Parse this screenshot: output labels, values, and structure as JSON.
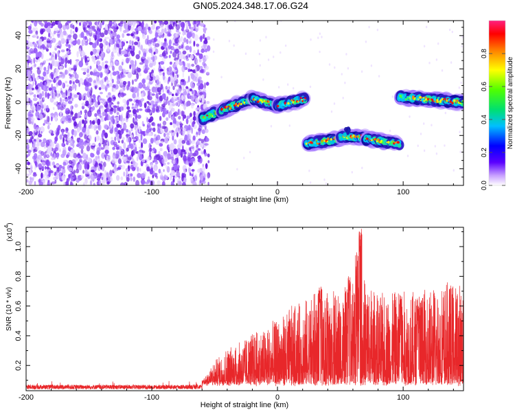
{
  "title": "GN05.2024.348.17.06.G24",
  "colors": {
    "noise": "#7a2ee6",
    "signal_low": "#1a1aa0",
    "snr_line": "#e8272a"
  },
  "chart_data": [
    {
      "type": "heatmap",
      "xlabel": "Height of straight line (km)",
      "ylabel": "Frequency (Hz)",
      "xlim": [
        -200,
        148
      ],
      "ylim": [
        -50,
        49
      ],
      "xticks": [
        -200,
        -100,
        0,
        100
      ],
      "yticks": [
        -40,
        -20,
        0,
        20,
        40
      ],
      "noise_region_x": [
        -200,
        -58
      ],
      "signal_segments": [
        {
          "x_start": -60,
          "x_end": -45,
          "freq_start": -10,
          "freq_end": -5
        },
        {
          "x_start": -45,
          "x_end": -20,
          "freq_start": -5,
          "freq_end": 2
        },
        {
          "x_start": -20,
          "x_end": 0,
          "freq_start": 2,
          "freq_end": -2
        },
        {
          "x_start": 0,
          "x_end": 22,
          "freq_start": -2,
          "freq_end": 2
        },
        {
          "x_start": 23,
          "x_end": 50,
          "freq_start": -25,
          "freq_end": -22
        },
        {
          "x_start": 50,
          "x_end": 70,
          "freq_start": -21,
          "freq_end": -21
        },
        {
          "x_start": 70,
          "x_end": 97,
          "freq_start": -22,
          "freq_end": -25
        },
        {
          "x_start": 97,
          "x_end": 148,
          "freq_start": 3,
          "freq_end": 0
        }
      ],
      "colorbar": {
        "label": "Normalized spectral amplitude",
        "range": [
          0,
          1
        ],
        "ticks": [
          "0.0",
          "0.2",
          "0.4",
          "0.6",
          "0.8"
        ]
      }
    },
    {
      "type": "line",
      "xlabel": "Height of straight line (km)",
      "ylabel": "SNR (10 * v/v)",
      "scale_note": "(x10",
      "scale_exp": "4",
      "xlim": [
        -200,
        148
      ],
      "ylim": [
        0.03,
        1.13
      ],
      "xticks": [
        -200,
        -100,
        0,
        100
      ],
      "yticks": [
        "0.2",
        "0.4",
        "0.6",
        "0.8",
        "1.0"
      ],
      "envelope": [
        {
          "x": -200,
          "y": 0.05
        },
        {
          "x": -150,
          "y": 0.05
        },
        {
          "x": -100,
          "y": 0.05
        },
        {
          "x": -60,
          "y": 0.06
        },
        {
          "x": -50,
          "y": 0.15
        },
        {
          "x": -40,
          "y": 0.22
        },
        {
          "x": -30,
          "y": 0.25
        },
        {
          "x": -20,
          "y": 0.3
        },
        {
          "x": -10,
          "y": 0.32
        },
        {
          "x": 0,
          "y": 0.36
        },
        {
          "x": 10,
          "y": 0.42
        },
        {
          "x": 20,
          "y": 0.45
        },
        {
          "x": 30,
          "y": 0.5
        },
        {
          "x": 40,
          "y": 0.52
        },
        {
          "x": 50,
          "y": 0.5
        },
        {
          "x": 60,
          "y": 0.55
        },
        {
          "x": 70,
          "y": 0.58
        },
        {
          "x": 80,
          "y": 0.48
        },
        {
          "x": 90,
          "y": 0.5
        },
        {
          "x": 100,
          "y": 0.5
        },
        {
          "x": 110,
          "y": 0.5
        },
        {
          "x": 120,
          "y": 0.52
        },
        {
          "x": 130,
          "y": 0.55
        },
        {
          "x": 148,
          "y": 0.55
        }
      ],
      "peaks": [
        {
          "x": 34,
          "y": 0.74
        },
        {
          "x": 57,
          "y": 0.8
        },
        {
          "x": 63,
          "y": 0.97
        },
        {
          "x": 66,
          "y": 1.13
        },
        {
          "x": 98,
          "y": 0.68
        },
        {
          "x": 112,
          "y": 0.66
        }
      ]
    }
  ]
}
